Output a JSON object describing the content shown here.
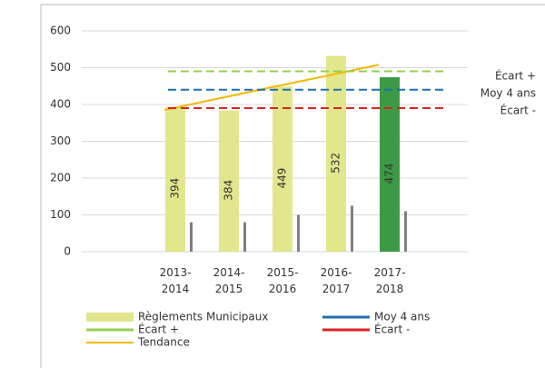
{
  "chart_data": {
    "type": "bar",
    "categories": [
      "2013-2014",
      "2014-2015",
      "2015-2016",
      "2016-2017",
      "2017-2018"
    ],
    "series": [
      {
        "name": "Règlements Municipaux",
        "type": "bar",
        "values": [
          394,
          384,
          449,
          532,
          474
        ],
        "colors": [
          "#e2e68c",
          "#e2e68c",
          "#e2e68c",
          "#e2e68c",
          "#3c9a46"
        ]
      },
      {
        "type": "thin-bar",
        "color": "#808080",
        "values": [
          80,
          80,
          100,
          125,
          110
        ]
      },
      {
        "name": "Tendance",
        "type": "line",
        "color": "#f5b800",
        "values": [
          385,
          416,
          447,
          477,
          508
        ]
      }
    ],
    "reference_lines": [
      {
        "name": "Écart +",
        "value": 490,
        "color": "#92d050"
      },
      {
        "name": "Moy 4 ans",
        "value": 440,
        "color": "#1f6fb5"
      },
      {
        "name": "Écart -",
        "value": 390,
        "color": "#e02020"
      }
    ],
    "ylim": [
      0,
      600
    ],
    "yticks": [
      0,
      100,
      200,
      300,
      400,
      500,
      600
    ],
    "grid": true
  }
}
